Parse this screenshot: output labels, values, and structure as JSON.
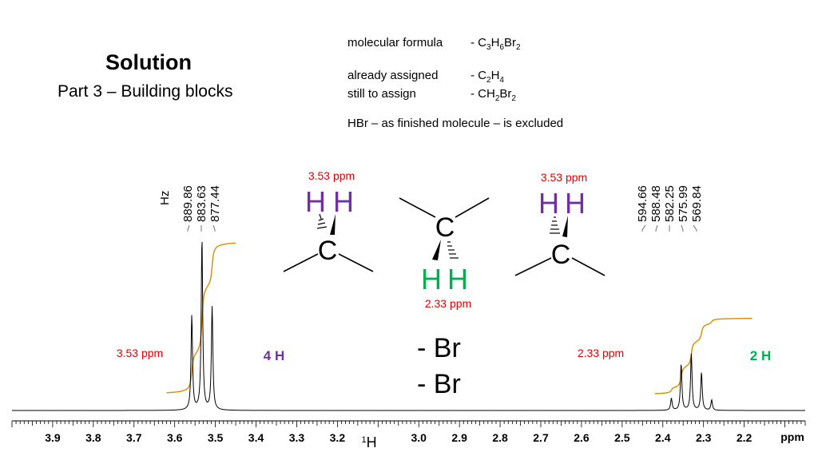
{
  "slide": {
    "title": "Solution",
    "subtitle": "Part 3 – Building blocks"
  },
  "info": {
    "formula_label": "molecular formula",
    "formula_value": [
      "- C",
      "3",
      "H",
      "6",
      "Br",
      "2"
    ],
    "assigned_label": "already assigned",
    "assigned_value": [
      "- C",
      "2",
      "H",
      "4"
    ],
    "toassign_label": "still to assign",
    "toassign_value": [
      "- CH",
      "2",
      "Br",
      "2"
    ],
    "note": "HBr – as finished molecule – is excluded"
  },
  "structures": {
    "ch2_left_shift": "3.53 ppm",
    "ch2_right_shift": "3.53 ppm",
    "ch2_mid_shift": "2.33 ppm",
    "atom_h": "H",
    "atom_c": "C",
    "substituents": [
      "- Br",
      "- Br"
    ]
  },
  "colors": {
    "purple": "#7030a0",
    "green": "#00b050",
    "red": "#e00000",
    "integral": "#d98c00",
    "spectrum": "#000000"
  },
  "chart_data": {
    "type": "line",
    "title": "",
    "xlabel": "1H",
    "xunit": "ppm",
    "xlim": [
      4.0,
      2.05
    ],
    "x_reversed": true,
    "x_ticks": [
      "3.9",
      "3.8",
      "3.7",
      "3.6",
      "3.5",
      "3.4",
      "3.3",
      "3.2",
      "3.0",
      "2.9",
      "2.8",
      "2.7",
      "2.6",
      "2.5",
      "2.4",
      "2.3",
      "2.2"
    ],
    "x_tick_values": [
      3.9,
      3.8,
      3.7,
      3.6,
      3.5,
      3.4,
      3.3,
      3.2,
      3.0,
      2.9,
      2.8,
      2.7,
      2.6,
      2.5,
      2.4,
      2.3,
      2.2
    ],
    "hz_unit": "Hz",
    "multiplets": [
      {
        "shift_label": "3.53 ppm",
        "integral_label": "4 H",
        "integral_color": "#7030a0",
        "hz_labels": [
          "889.86",
          "883.63",
          "877.44"
        ],
        "peaks": [
          {
            "ppm": 3.558,
            "intensity": 0.55
          },
          {
            "ppm": 3.533,
            "intensity": 1.0
          },
          {
            "ppm": 3.508,
            "intensity": 0.6
          }
        ],
        "integral_range": [
          3.62,
          3.45
        ]
      },
      {
        "shift_label": "2.33 ppm",
        "integral_label": "2 H",
        "integral_color": "#00b050",
        "hz_labels": [
          "594.66",
          "588.48",
          "582.25",
          "575.99",
          "569.84"
        ],
        "peaks": [
          {
            "ppm": 2.379,
            "intensity": 0.07
          },
          {
            "ppm": 2.355,
            "intensity": 0.27
          },
          {
            "ppm": 2.33,
            "intensity": 0.33
          },
          {
            "ppm": 2.305,
            "intensity": 0.22
          },
          {
            "ppm": 2.28,
            "intensity": 0.06
          }
        ],
        "integral_range": [
          2.42,
          2.18
        ]
      }
    ]
  }
}
